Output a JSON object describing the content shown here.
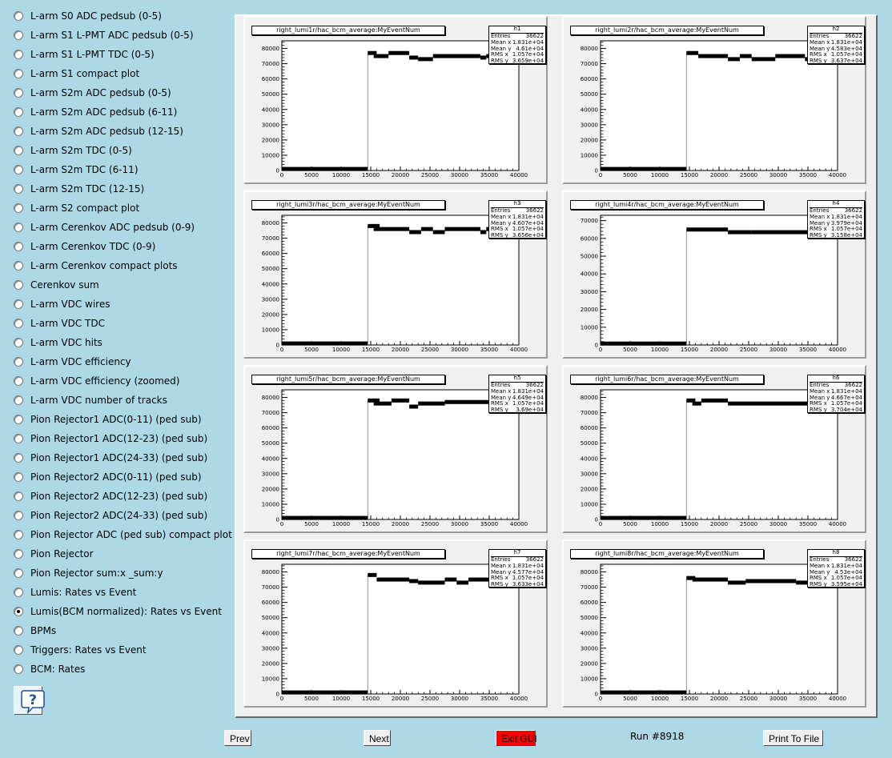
{
  "sidebar": {
    "items": [
      {
        "label": "L-arm S0 ADC pedsub (0-5)",
        "selected": false
      },
      {
        "label": "L-arm S1 L-PMT ADC pedsub (0-5)",
        "selected": false
      },
      {
        "label": "L-arm S1 L-PMT TDC (0-5)",
        "selected": false
      },
      {
        "label": "L-arm S1 compact plot",
        "selected": false
      },
      {
        "label": "L-arm S2m ADC pedsub (0-5)",
        "selected": false
      },
      {
        "label": "L-arm S2m ADC pedsub (6-11)",
        "selected": false
      },
      {
        "label": "L-arm S2m ADC pedsub (12-15)",
        "selected": false
      },
      {
        "label": "L-arm S2m TDC (0-5)",
        "selected": false
      },
      {
        "label": "L-arm S2m TDC (6-11)",
        "selected": false
      },
      {
        "label": "L-arm S2m TDC (12-15)",
        "selected": false
      },
      {
        "label": "L-arm S2 compact plot",
        "selected": false
      },
      {
        "label": "L-arm Cerenkov ADC pedsub (0-9)",
        "selected": false
      },
      {
        "label": "L-arm Cerenkov TDC (0-9)",
        "selected": false
      },
      {
        "label": "L-arm Cerenkov compact plots",
        "selected": false
      },
      {
        "label": "Cerenkov sum",
        "selected": false
      },
      {
        "label": "L-arm VDC wires",
        "selected": false
      },
      {
        "label": "L-arm VDC TDC",
        "selected": false
      },
      {
        "label": "L-arm VDC hits",
        "selected": false
      },
      {
        "label": "L-arm VDC efficiency",
        "selected": false
      },
      {
        "label": "L-arm VDC efficiency (zoomed)",
        "selected": false
      },
      {
        "label": "L-arm VDC number of tracks",
        "selected": false
      },
      {
        "label": "Pion Rejector1 ADC(0-11) (ped sub)",
        "selected": false
      },
      {
        "label": "Pion Rejector1 ADC(12-23) (ped sub)",
        "selected": false
      },
      {
        "label": "Pion Rejector1 ADC(24-33) (ped sub)",
        "selected": false
      },
      {
        "label": "Pion Rejector2 ADC(0-11) (ped sub)",
        "selected": false
      },
      {
        "label": "Pion Rejector2 ADC(12-23) (ped sub)",
        "selected": false
      },
      {
        "label": "Pion Rejector2 ADC(24-33) (ped sub)",
        "selected": false
      },
      {
        "label": "Pion Rejector ADC (ped sub) compact plot",
        "selected": false
      },
      {
        "label": "Pion Rejector",
        "selected": false
      },
      {
        "label": "Pion Rejector sum:x _sum:y",
        "selected": false
      },
      {
        "label": "Lumis: Rates vs Event",
        "selected": false
      },
      {
        "label": "Lumis(BCM normalized): Rates vs Event",
        "selected": true
      },
      {
        "label": "BPMs",
        "selected": false
      },
      {
        "label": "Triggers: Rates vs Event",
        "selected": false
      },
      {
        "label": "BCM: Rates",
        "selected": false
      }
    ],
    "help_icon": "question-mark-icon"
  },
  "buttons": {
    "prev": "Prev",
    "next": "Next",
    "exit": "Exit GUI",
    "print": "Print To File"
  },
  "run_label": "Run #8918",
  "colors": {
    "background": "#add8e6",
    "exit_button": "#ff0000"
  },
  "chart_data": [
    {
      "type": "scatter",
      "name": "h1",
      "title": "right_lumi1r/hac_bcm_average:MyEventNum",
      "stats": {
        "Entries": "36622",
        "Mean x": "1.831e+04",
        "Mean y": "4.61e+04",
        "RMS x": "1.057e+04",
        "RMS y": "3.659e+04"
      },
      "xlim": [
        0,
        40000
      ],
      "ylim": [
        0,
        85000
      ],
      "xticks": [
        0,
        5000,
        10000,
        15000,
        20000,
        25000,
        30000,
        35000,
        40000
      ],
      "yticks": [
        0,
        10000,
        20000,
        30000,
        40000,
        50000,
        60000,
        70000,
        80000
      ],
      "segments": [
        {
          "x": [
            0,
            14500
          ],
          "y": 1000
        },
        {
          "x": 14500,
          "y_range": [
            1000,
            77000
          ]
        },
        {
          "x": [
            14500,
            16000
          ],
          "y": 77000
        },
        {
          "x": [
            15500,
            18000
          ],
          "y": 75000
        },
        {
          "x": [
            18000,
            21500
          ],
          "y": 77000
        },
        {
          "x": [
            21500,
            23000
          ],
          "y": 74000
        },
        {
          "x": [
            23000,
            25500
          ],
          "y": 73000
        },
        {
          "x": [
            25500,
            27500
          ],
          "y": 75000
        },
        {
          "x": [
            27500,
            33500
          ],
          "y": 75000
        },
        {
          "x": [
            33500,
            34500
          ],
          "y": 74000
        },
        {
          "x": [
            34500,
            40000
          ],
          "y": 75000
        }
      ]
    },
    {
      "type": "scatter",
      "name": "h2",
      "title": "right_lumi2r/hac_bcm_average:MyEventNum",
      "stats": {
        "Entries": "36622",
        "Mean x": "1.831e+04",
        "Mean y": "4.583e+04",
        "RMS x": "1.057e+04",
        "RMS y": "3.637e+04"
      },
      "xlim": [
        0,
        40000
      ],
      "ylim": [
        0,
        85000
      ],
      "xticks": [
        0,
        5000,
        10000,
        15000,
        20000,
        25000,
        30000,
        35000,
        40000
      ],
      "yticks": [
        0,
        10000,
        20000,
        30000,
        40000,
        50000,
        60000,
        70000,
        80000
      ],
      "segments": [
        {
          "x": [
            0,
            14500
          ],
          "y": 1000
        },
        {
          "x": 14500,
          "y_range": [
            1000,
            77000
          ]
        },
        {
          "x": [
            14500,
            16500
          ],
          "y": 77000
        },
        {
          "x": [
            16500,
            21500
          ],
          "y": 75000
        },
        {
          "x": [
            21500,
            23500
          ],
          "y": 73000
        },
        {
          "x": [
            23500,
            25500
          ],
          "y": 75000
        },
        {
          "x": [
            25500,
            29500
          ],
          "y": 73000
        },
        {
          "x": [
            29500,
            34500
          ],
          "y": 75000
        },
        {
          "x": [
            34500,
            36000
          ],
          "y": 73000
        },
        {
          "x": [
            36000,
            40000
          ],
          "y": 75000
        }
      ]
    },
    {
      "type": "scatter",
      "name": "h3",
      "title": "right_lumi3r/hac_bcm_average:MyEventNum",
      "stats": {
        "Entries": "36622",
        "Mean x": "1.831e+04",
        "Mean y": "4.607e+04",
        "RMS x": "1.057e+04",
        "RMS y": "3.656e+04"
      },
      "xlim": [
        0,
        40000
      ],
      "ylim": [
        0,
        85000
      ],
      "xticks": [
        0,
        5000,
        10000,
        15000,
        20000,
        25000,
        30000,
        35000,
        40000
      ],
      "yticks": [
        0,
        10000,
        20000,
        30000,
        40000,
        50000,
        60000,
        70000,
        80000
      ],
      "segments": [
        {
          "x": [
            0,
            14500
          ],
          "y": 1000
        },
        {
          "x": 14500,
          "y_range": [
            1000,
            78000
          ]
        },
        {
          "x": [
            14500,
            16500
          ],
          "y": 78000
        },
        {
          "x": [
            15500,
            21500
          ],
          "y": 76000
        },
        {
          "x": [
            21500,
            23500
          ],
          "y": 74000
        },
        {
          "x": [
            23500,
            25500
          ],
          "y": 76000
        },
        {
          "x": [
            25500,
            27500
          ],
          "y": 74000
        },
        {
          "x": [
            27500,
            33500
          ],
          "y": 76000
        },
        {
          "x": [
            33500,
            34500
          ],
          "y": 74000
        },
        {
          "x": [
            34500,
            40000
          ],
          "y": 76000
        }
      ]
    },
    {
      "type": "scatter",
      "name": "h4",
      "title": "right_lumi4r/hac_bcm_average:MyEventNum",
      "stats": {
        "Entries": "36622",
        "Mean x": "1.831e+04",
        "Mean y": "3.979e+04",
        "RMS x": "1.057e+04",
        "RMS y": "3.158e+04"
      },
      "xlim": [
        0,
        40000
      ],
      "ylim": [
        0,
        73000
      ],
      "xticks": [
        0,
        5000,
        10000,
        15000,
        20000,
        25000,
        30000,
        35000,
        40000
      ],
      "yticks": [
        0,
        10000,
        20000,
        30000,
        40000,
        50000,
        60000,
        70000
      ],
      "segments": [
        {
          "x": [
            0,
            14500
          ],
          "y": 800
        },
        {
          "x": 14500,
          "y_range": [
            800,
            65000
          ]
        },
        {
          "x": [
            14500,
            21500
          ],
          "y": 65000
        },
        {
          "x": [
            21500,
            25500
          ],
          "y": 63500
        },
        {
          "x": [
            25500,
            36500
          ],
          "y": 63500
        },
        {
          "x": [
            36500,
            40000
          ],
          "y": 65000
        }
      ]
    },
    {
      "type": "scatter",
      "name": "h5",
      "title": "right_lumi5r/hac_bcm_average:MyEventNum",
      "stats": {
        "Entries": "36622",
        "Mean x": "1.831e+04",
        "Mean y": "4.649e+04",
        "RMS x": "1.057e+04",
        "RMS y": "3.69e+04"
      },
      "xlim": [
        0,
        40000
      ],
      "ylim": [
        0,
        85000
      ],
      "xticks": [
        0,
        5000,
        10000,
        15000,
        20000,
        25000,
        30000,
        35000,
        40000
      ],
      "yticks": [
        0,
        10000,
        20000,
        30000,
        40000,
        50000,
        60000,
        70000,
        80000
      ],
      "segments": [
        {
          "x": [
            0,
            14500
          ],
          "y": 1000
        },
        {
          "x": 14500,
          "y_range": [
            1000,
            78000
          ]
        },
        {
          "x": [
            14500,
            16500
          ],
          "y": 78000
        },
        {
          "x": [
            15500,
            18500
          ],
          "y": 76000
        },
        {
          "x": [
            18500,
            21500
          ],
          "y": 78000
        },
        {
          "x": [
            21500,
            23000
          ],
          "y": 74000
        },
        {
          "x": [
            23000,
            27500
          ],
          "y": 76000
        },
        {
          "x": [
            27500,
            40000
          ],
          "y": 77000
        }
      ]
    },
    {
      "type": "scatter",
      "name": "h6",
      "title": "right_lumi6r/hac_bcm_average:MyEventNum",
      "stats": {
        "Entries": "36622",
        "Mean x": "1.831e+04",
        "Mean y": "4.667e+04",
        "RMS x": "1.057e+04",
        "RMS y": "3.704e+04"
      },
      "xlim": [
        0,
        40000
      ],
      "ylim": [
        0,
        85000
      ],
      "xticks": [
        0,
        5000,
        10000,
        15000,
        20000,
        25000,
        30000,
        35000,
        40000
      ],
      "yticks": [
        0,
        10000,
        20000,
        30000,
        40000,
        50000,
        60000,
        70000,
        80000
      ],
      "segments": [
        {
          "x": [
            0,
            14500
          ],
          "y": 1000
        },
        {
          "x": 14500,
          "y_range": [
            1000,
            78000
          ]
        },
        {
          "x": [
            14500,
            16000
          ],
          "y": 78000
        },
        {
          "x": [
            15500,
            17000
          ],
          "y": 76000
        },
        {
          "x": [
            17000,
            21500
          ],
          "y": 78000
        },
        {
          "x": [
            21500,
            40000
          ],
          "y": 76000
        }
      ]
    },
    {
      "type": "scatter",
      "name": "h7",
      "title": "right_lumi7r/hac_bcm_average:MyEventNum",
      "stats": {
        "Entries": "36622",
        "Mean x": "1.831e+04",
        "Mean y": "4.577e+04",
        "RMS x": "1.057e+04",
        "RMS y": "3.633e+04"
      },
      "xlim": [
        0,
        40000
      ],
      "ylim": [
        0,
        85000
      ],
      "xticks": [
        0,
        5000,
        10000,
        15000,
        20000,
        25000,
        30000,
        35000,
        40000
      ],
      "yticks": [
        0,
        10000,
        20000,
        30000,
        40000,
        50000,
        60000,
        70000,
        80000
      ],
      "segments": [
        {
          "x": [
            0,
            14500
          ],
          "y": 1000
        },
        {
          "x": 14500,
          "y_range": [
            1000,
            78000
          ]
        },
        {
          "x": [
            14500,
            16000
          ],
          "y": 78000
        },
        {
          "x": [
            16000,
            21500
          ],
          "y": 75000
        },
        {
          "x": [
            21500,
            23000
          ],
          "y": 74000
        },
        {
          "x": [
            23000,
            27500
          ],
          "y": 73000
        },
        {
          "x": [
            27500,
            29500
          ],
          "y": 75000
        },
        {
          "x": [
            29500,
            31500
          ],
          "y": 73000
        },
        {
          "x": [
            31500,
            40000
          ],
          "y": 75000
        }
      ]
    },
    {
      "type": "scatter",
      "name": "h8",
      "title": "right_lumi8r/hac_bcm_average:MyEventNum",
      "stats": {
        "Entries": "36622",
        "Mean x": "1.831e+04",
        "Mean y": "4.53e+04",
        "RMS x": "1.057e+04",
        "RMS y": "3.595e+04"
      },
      "xlim": [
        0,
        40000
      ],
      "ylim": [
        0,
        85000
      ],
      "xticks": [
        0,
        5000,
        10000,
        15000,
        20000,
        25000,
        30000,
        35000,
        40000
      ],
      "yticks": [
        0,
        10000,
        20000,
        30000,
        40000,
        50000,
        60000,
        70000,
        80000
      ],
      "segments": [
        {
          "x": [
            0,
            14500
          ],
          "y": 1000
        },
        {
          "x": 14500,
          "y_range": [
            1000,
            76000
          ]
        },
        {
          "x": [
            14500,
            16000
          ],
          "y": 76000
        },
        {
          "x": [
            15500,
            21500
          ],
          "y": 75000
        },
        {
          "x": [
            21500,
            24500
          ],
          "y": 73000
        },
        {
          "x": [
            24500,
            33000
          ],
          "y": 74000
        },
        {
          "x": [
            33000,
            35000
          ],
          "y": 73000
        },
        {
          "x": [
            35000,
            40000
          ],
          "y": 75000
        }
      ]
    }
  ]
}
